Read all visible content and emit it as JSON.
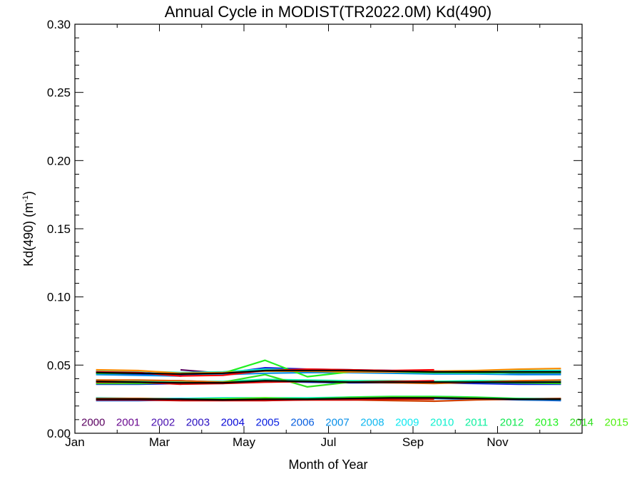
{
  "chart_data": {
    "type": "line",
    "title": "Annual Cycle in MODIST(TR2022.0M) Kd(490)",
    "xlabel": "Month of Year",
    "ylabel": "Kd(490) (m",
    "ylabel_sup": "-1",
    "ylabel_close": ")",
    "xlim": [
      0,
      12
    ],
    "ylim": [
      0,
      0.3
    ],
    "x_ticks": [
      {
        "value": 0,
        "label": "Jan"
      },
      {
        "value": 2,
        "label": "Mar"
      },
      {
        "value": 4,
        "label": "May"
      },
      {
        "value": 6,
        "label": "Jul"
      },
      {
        "value": 8,
        "label": "Sep"
      },
      {
        "value": 10,
        "label": "Nov"
      }
    ],
    "y_ticks": [
      {
        "value": 0.0,
        "label": "0.00"
      },
      {
        "value": 0.05,
        "label": "0.05"
      },
      {
        "value": 0.1,
        "label": "0.10"
      },
      {
        "value": 0.15,
        "label": "0.15"
      },
      {
        "value": 0.2,
        "label": "0.20"
      },
      {
        "value": 0.25,
        "label": "0.25"
      },
      {
        "value": 0.3,
        "label": "0.30"
      }
    ],
    "x": [
      0.5,
      1.5,
      2.5,
      3.5,
      4.5,
      5.5,
      6.5,
      7.5,
      8.5,
      9.5,
      10.5,
      11.5
    ],
    "series": [
      {
        "name": "2000",
        "color": "#5a0060",
        "values": [
          null,
          null,
          0.0465,
          0.044,
          0.047,
          0.0465,
          0.046,
          0.0455,
          0.0455,
          0.045,
          0.0455,
          0.0455
        ]
      },
      {
        "name": "2001",
        "color": "#6a0a90",
        "values": [
          0.0455,
          0.0445,
          0.043,
          0.0435,
          0.0475,
          0.0465,
          0.046,
          0.0455,
          0.045,
          0.045,
          0.0455,
          0.046
        ]
      },
      {
        "name": "2002",
        "color": "#4a10b0",
        "values": [
          0.038,
          0.0385,
          0.0385,
          0.0375,
          0.039,
          0.038,
          0.0375,
          0.0375,
          0.0375,
          0.038,
          0.038,
          0.038
        ]
      },
      {
        "name": "2003",
        "color": "#2a10c0",
        "values": [
          0.025,
          0.025,
          0.0255,
          0.025,
          0.0245,
          0.025,
          0.0255,
          0.026,
          0.026,
          0.0255,
          0.025,
          0.025
        ]
      },
      {
        "name": "2004",
        "color": "#0a0ad8",
        "values": [
          0.044,
          0.0435,
          0.043,
          0.044,
          0.048,
          0.047,
          0.0465,
          0.046,
          0.0455,
          0.045,
          0.044,
          0.044
        ]
      },
      {
        "name": "2005",
        "color": "#0a20e0",
        "values": [
          0.036,
          0.036,
          0.0365,
          0.037,
          0.038,
          0.0375,
          0.037,
          0.037,
          0.037,
          0.0365,
          0.036,
          0.036
        ]
      },
      {
        "name": "2006",
        "color": "#0a60e0",
        "values": [
          0.024,
          0.024,
          0.0245,
          0.0245,
          0.0245,
          0.025,
          0.0255,
          0.0255,
          0.0255,
          0.025,
          0.0245,
          0.024
        ]
      },
      {
        "name": "2007",
        "color": "#0a90e8",
        "values": [
          0.043,
          0.0425,
          0.042,
          0.043,
          0.044,
          0.0445,
          0.0445,
          0.044,
          0.0435,
          0.0435,
          0.043,
          0.043
        ]
      },
      {
        "name": "2008",
        "color": "#10b8f0",
        "values": [
          0.037,
          0.037,
          0.037,
          0.0365,
          0.039,
          0.0385,
          0.038,
          0.038,
          0.038,
          0.0375,
          0.037,
          0.037
        ]
      },
      {
        "name": "2009",
        "color": "#10e8f0",
        "values": [
          0.026,
          0.0255,
          0.0255,
          0.026,
          0.026,
          0.026,
          0.0265,
          0.0265,
          0.0265,
          0.026,
          0.0255,
          0.0255
        ]
      },
      {
        "name": "2010",
        "color": "#10f0d0",
        "values": [
          0.046,
          0.0455,
          0.0445,
          0.045,
          0.047,
          0.0465,
          0.046,
          0.0455,
          0.045,
          0.0455,
          0.046,
          0.046
        ]
      },
      {
        "name": "2011",
        "color": "#10f0a0",
        "values": [
          0.039,
          0.0385,
          0.038,
          0.038,
          0.0395,
          0.039,
          0.0385,
          0.0385,
          0.038,
          0.0385,
          0.0385,
          0.0385
        ]
      },
      {
        "name": "2012",
        "color": "#10e850",
        "values": [
          0.025,
          0.025,
          0.025,
          0.0255,
          0.026,
          0.0255,
          0.0265,
          0.027,
          0.027,
          0.0265,
          0.0255,
          0.025
        ]
      },
      {
        "name": "2013",
        "color": "#20f020",
        "values": [
          0.044,
          0.044,
          0.0435,
          0.044,
          0.0535,
          0.0415,
          0.045,
          0.045,
          0.0445,
          0.0445,
          0.0445,
          0.0445
        ]
      },
      {
        "name": "2014",
        "color": "#30e020",
        "values": [
          0.0365,
          0.0365,
          0.037,
          0.0375,
          0.043,
          0.034,
          0.0375,
          0.038,
          0.0375,
          0.0375,
          0.037,
          0.0365
        ]
      },
      {
        "name": "2015",
        "color": "#50f010",
        "values": [
          0.0255,
          0.0255,
          0.025,
          0.025,
          0.026,
          0.0245,
          0.026,
          0.0265,
          0.0265,
          0.026,
          0.025,
          0.025
        ]
      },
      {
        "name": "",
        "color": "#ff8c00",
        "values": [
          0.0465,
          0.046,
          0.044,
          0.0445,
          0.0455,
          0.0455,
          0.045,
          0.045,
          0.0455,
          0.046,
          0.047,
          0.0475
        ]
      },
      {
        "name": "",
        "color": "#e06000",
        "values": [
          0.039,
          0.039,
          0.0385,
          0.0375,
          0.038,
          0.038,
          0.0375,
          0.037,
          0.0365,
          0.0375,
          0.0385,
          0.039
        ]
      },
      {
        "name": "",
        "color": "#d04000",
        "values": [
          0.0255,
          0.0255,
          0.025,
          0.0245,
          0.0245,
          0.0245,
          0.0245,
          0.024,
          0.0235,
          0.0245,
          0.025,
          0.0255
        ]
      },
      {
        "name": "",
        "color": "#ff0000",
        "values": [
          0.045,
          0.0445,
          0.042,
          0.0425,
          0.046,
          0.047,
          0.0465,
          0.046,
          0.0465,
          null,
          null,
          null
        ]
      },
      {
        "name": "",
        "color": "#e00000",
        "values": [
          0.0375,
          0.0375,
          0.036,
          0.0365,
          0.0375,
          0.038,
          0.0375,
          0.038,
          0.0385,
          null,
          null,
          null
        ]
      },
      {
        "name": "",
        "color": "#cc0000",
        "values": [
          0.0245,
          0.0245,
          0.024,
          0.024,
          0.024,
          0.0245,
          0.0245,
          0.025,
          0.025,
          null,
          null,
          null
        ]
      },
      {
        "name": "",
        "color": "#000000",
        "values": [
          0.0445,
          0.044,
          0.0435,
          0.044,
          0.046,
          0.046,
          0.046,
          0.0455,
          0.045,
          0.045,
          0.045,
          0.045
        ]
      },
      {
        "name": "",
        "color": "#000000",
        "values": [
          0.038,
          0.0375,
          0.037,
          0.037,
          0.0385,
          0.038,
          0.0375,
          0.0375,
          0.0375,
          0.0375,
          0.0375,
          0.0375
        ]
      },
      {
        "name": "",
        "color": "#000000",
        "values": [
          0.025,
          0.025,
          0.025,
          0.0245,
          0.025,
          0.025,
          0.0255,
          0.026,
          0.026,
          0.0255,
          0.025,
          0.025
        ]
      }
    ],
    "year_labels": [
      {
        "text": "2000",
        "color": "#5a0060"
      },
      {
        "text": "2001",
        "color": "#6a0a90"
      },
      {
        "text": "2002",
        "color": "#4a10b0"
      },
      {
        "text": "2003",
        "color": "#2a10c0"
      },
      {
        "text": "2004",
        "color": "#0a0ad8"
      },
      {
        "text": "2005",
        "color": "#0a20e0"
      },
      {
        "text": "2006",
        "color": "#0a60e0"
      },
      {
        "text": "2007",
        "color": "#0a90e8"
      },
      {
        "text": "2008",
        "color": "#10b8f0"
      },
      {
        "text": "2009",
        "color": "#10e8f0"
      },
      {
        "text": "2010",
        "color": "#10f0d0"
      },
      {
        "text": "2011",
        "color": "#10f0a0"
      },
      {
        "text": "2012",
        "color": "#10e850"
      },
      {
        "text": "2013",
        "color": "#20f020"
      },
      {
        "text": "2014",
        "color": "#30e020"
      },
      {
        "text": "2015",
        "color": "#50f010"
      }
    ],
    "year_label_y": 0.0055,
    "grid": false,
    "legend": "bottom"
  }
}
